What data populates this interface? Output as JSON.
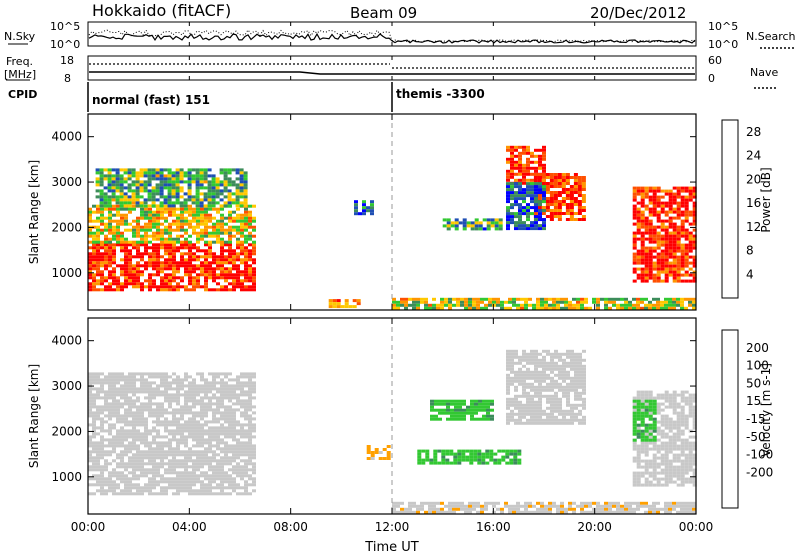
{
  "header": {
    "station": "Hokkaido (fitACF)",
    "beam": "Beam 09",
    "date": "20/Dec/2012"
  },
  "status_panel": {
    "nsky_label": "N.Sky",
    "nsky_ticks": [
      "10^5",
      "10^0"
    ],
    "nsearch_label": "N.Search",
    "freq_label": "Freq.",
    "freq_unit": "[MHz]",
    "freq_ticks": [
      "18",
      "8"
    ],
    "nave_label": "Nave",
    "nave_ticks": [
      "60",
      "0"
    ],
    "cpid_label": "CPID",
    "cpid_modes": [
      {
        "label": "normal (fast) 151",
        "start": "00:00"
      },
      {
        "label": "themis -3300",
        "start": "12:00"
      }
    ]
  },
  "colors": {
    "power_scale": [
      "#0000ff",
      "#1f4fb4",
      "#3c8c5a",
      "#32c832",
      "#ffc800",
      "#ff9600",
      "#ff5000",
      "#ff0000"
    ],
    "velocity_scale": [
      "#0000ff",
      "#2850c8",
      "#3c8c5a",
      "#32c832",
      "#c8c8c8",
      "#c8c8c8",
      "#ffa000",
      "#ff7800",
      "#ff3c00",
      "#ff0000"
    ],
    "ground_scatter": "#c8c8c8"
  },
  "chart_data": [
    {
      "type": "heatmap",
      "panel": "power",
      "ylabel": "Slant Range [km]",
      "xlabel": "Time UT",
      "x_ticks": [
        "00:00",
        "04:00",
        "08:00",
        "12:00",
        "16:00",
        "20:00",
        "00:00"
      ],
      "xlim_hours": [
        0,
        24
      ],
      "y_ticks": [
        1000,
        2000,
        3000,
        4000
      ],
      "ylim": [
        180,
        4500
      ],
      "colorbar": {
        "label": "Power [dB]",
        "ticks": [
          "28",
          "24",
          "20",
          "16",
          "12",
          "8",
          "4"
        ],
        "range": [
          0,
          30
        ]
      },
      "regions": [
        {
          "t0": 0.0,
          "t1": 6.5,
          "r0": 650,
          "r1": 1650,
          "level": 27
        },
        {
          "t0": 0.0,
          "t1": 6.5,
          "r0": 1650,
          "r1": 2500,
          "level": 17
        },
        {
          "t0": 0.3,
          "t1": 6.2,
          "r0": 2500,
          "r1": 3300,
          "level": 12
        },
        {
          "t0": 9.5,
          "t1": 10.7,
          "r0": 250,
          "r1": 420,
          "level": 22
        },
        {
          "t0": 16.5,
          "t1": 18.0,
          "r0": 3000,
          "r1": 3800,
          "level": 26
        },
        {
          "t0": 17.6,
          "t1": 19.6,
          "r0": 2200,
          "r1": 3200,
          "level": 26
        },
        {
          "t0": 21.5,
          "t1": 24.0,
          "r0": 850,
          "r1": 2900,
          "level": 27
        },
        {
          "t0": 12.0,
          "t1": 24.0,
          "r0": 200,
          "r1": 450,
          "level": 16
        },
        {
          "t0": 14.0,
          "t1": 16.3,
          "r0": 1950,
          "r1": 2200,
          "level": 10
        },
        {
          "t0": 16.5,
          "t1": 18.0,
          "r0": 2000,
          "r1": 3000,
          "level": 6
        },
        {
          "t0": 10.5,
          "t1": 11.2,
          "r0": 2300,
          "r1": 2600,
          "level": 8
        }
      ]
    },
    {
      "type": "heatmap",
      "panel": "velocity",
      "ylabel": "Slant Range [km]",
      "xlabel": "Time UT",
      "x_ticks": [
        "00:00",
        "04:00",
        "08:00",
        "12:00",
        "16:00",
        "20:00",
        "00:00"
      ],
      "xlim_hours": [
        0,
        24
      ],
      "y_ticks": [
        1000,
        2000,
        3000,
        4000
      ],
      "ylim": [
        180,
        4500
      ],
      "colorbar": {
        "label": "Velocity [m s-1]",
        "ticks": [
          "200",
          "100",
          "50",
          "15",
          "-15",
          "-50",
          "-100",
          "-200"
        ],
        "range": [
          -250,
          250
        ]
      },
      "regions": [
        {
          "t0": 0.0,
          "t1": 6.5,
          "r0": 650,
          "r1": 1650,
          "level": 0
        },
        {
          "t0": 0.0,
          "t1": 6.5,
          "r0": 1650,
          "r1": 3300,
          "level": 0
        },
        {
          "t0": 16.5,
          "t1": 19.6,
          "r0": 2200,
          "r1": 3800,
          "level": 0
        },
        {
          "t0": 21.5,
          "t1": 24.0,
          "r0": 850,
          "r1": 2900,
          "level": 0
        },
        {
          "t0": 13.5,
          "t1": 16.0,
          "r0": 2250,
          "r1": 2700,
          "level": 40
        },
        {
          "t0": 13.0,
          "t1": 17.0,
          "r0": 1300,
          "r1": 1600,
          "level": 40
        },
        {
          "t0": 11.0,
          "t1": 11.8,
          "r0": 1400,
          "r1": 1700,
          "level": -60
        },
        {
          "t0": 12.0,
          "t1": 24.0,
          "r0": 200,
          "r1": 450,
          "level": -40
        },
        {
          "t0": 21.5,
          "t1": 22.3,
          "r0": 1800,
          "r1": 2700,
          "level": 40
        }
      ]
    }
  ]
}
